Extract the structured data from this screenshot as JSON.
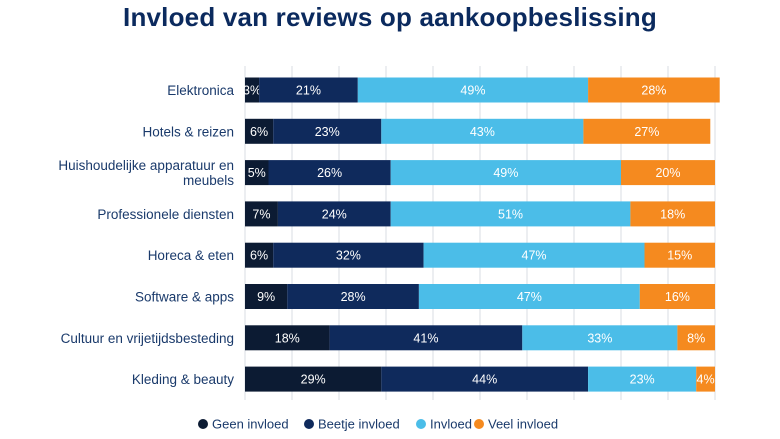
{
  "chart_data": {
    "type": "bar",
    "orientation": "horizontal",
    "stacked": true,
    "title": "Invloed van reviews op aankoopbeslissing",
    "categories": [
      [
        "Elektronica"
      ],
      [
        "Hotels & reizen"
      ],
      [
        "Huishoudelijke apparatuur en",
        "meubels"
      ],
      [
        "Professionele diensten"
      ],
      [
        "Horeca & eten"
      ],
      [
        "Software & apps"
      ],
      [
        "Cultuur en vrijetijdsbesteding"
      ],
      [
        "Kleding & beauty"
      ]
    ],
    "series": [
      {
        "name": "Geen invloed",
        "color": "#0c1b33",
        "label_color": "#ffffff",
        "values": [
          3,
          6,
          5,
          7,
          6,
          9,
          18,
          29
        ]
      },
      {
        "name": "Beetje invloed",
        "color": "#0f2a5c",
        "label_color": "#ffffff",
        "values": [
          21,
          23,
          26,
          24,
          32,
          28,
          41,
          44
        ]
      },
      {
        "name": "Invloed",
        "color": "#4bbde8",
        "label_color": "#ffffff",
        "values": [
          49,
          43,
          49,
          51,
          47,
          47,
          33,
          23
        ]
      },
      {
        "name": "Veel invloed",
        "color": "#f58a1f",
        "label_color": "#ffffff",
        "values": [
          28,
          27,
          20,
          18,
          15,
          16,
          8,
          4
        ]
      }
    ],
    "value_suffix": "%",
    "grid": true,
    "legend_position": "bottom"
  }
}
